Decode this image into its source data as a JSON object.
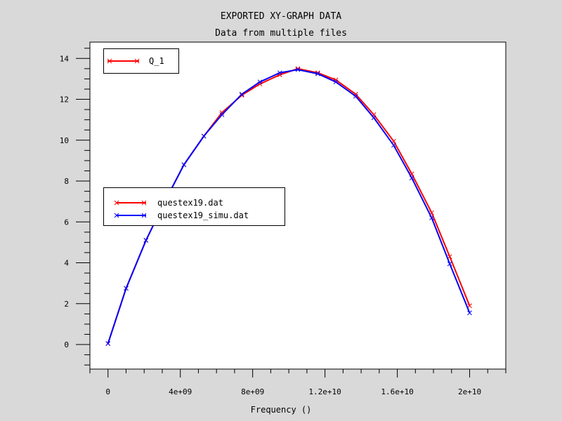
{
  "chart_data": {
    "type": "line",
    "title": "EXPORTED XY-GRAPH DATA",
    "subtitle": "Data from multiple files",
    "xlabel": "Frequency ()",
    "ylabel": "",
    "xlim": [
      -1000000000.0,
      22000000000.0
    ],
    "ylim": [
      -1.2,
      14.8
    ],
    "xticks": [
      0,
      4000000000.0,
      8000000000.0,
      12000000000.0,
      16000000000.0,
      20000000000.0
    ],
    "xtick_labels": [
      "0",
      "4e+09",
      "8e+09",
      "1.2e+10",
      "1.6e+10",
      "2e+10"
    ],
    "yticks": [
      0,
      2,
      4,
      6,
      8,
      10,
      12,
      14
    ],
    "ytick_labels": [
      "0",
      "2",
      "4",
      "6",
      "8",
      "10",
      "12",
      "14"
    ],
    "grid": false,
    "series": [
      {
        "name": "questex19.dat",
        "color": "#ff0000",
        "x": [
          0,
          1000000000.0,
          2100000000.0,
          3200000000.0,
          4200000000.0,
          5300000000.0,
          6300000000.0,
          7400000000.0,
          8400000000.0,
          9500000000.0,
          10500000000.0,
          11600000000.0,
          12600000000.0,
          13700000000.0,
          14700000000.0,
          15800000000.0,
          16800000000.0,
          17900000000.0,
          18900000000.0,
          20000000000.0
        ],
        "values": [
          0.05,
          2.75,
          5.1,
          7.1,
          8.8,
          10.2,
          11.35,
          12.2,
          12.75,
          13.2,
          13.5,
          13.3,
          12.95,
          12.25,
          11.25,
          9.95,
          8.35,
          6.45,
          4.3,
          1.9
        ]
      },
      {
        "name": "questex19_simu.dat",
        "color": "#0000ff",
        "x": [
          0,
          1000000000.0,
          2100000000.0,
          3200000000.0,
          4200000000.0,
          5300000000.0,
          6300000000.0,
          7400000000.0,
          8400000000.0,
          9500000000.0,
          10500000000.0,
          11600000000.0,
          12600000000.0,
          13700000000.0,
          14700000000.0,
          15800000000.0,
          16800000000.0,
          17900000000.0,
          18900000000.0,
          20000000000.0
        ],
        "values": [
          0.05,
          2.75,
          5.1,
          7.1,
          8.8,
          10.2,
          11.25,
          12.25,
          12.85,
          13.3,
          13.45,
          13.25,
          12.85,
          12.15,
          11.1,
          9.75,
          8.15,
          6.2,
          3.95,
          1.55
        ]
      }
    ],
    "legends": [
      {
        "entries": [
          {
            "label": "Q_1",
            "color": "#ff0000"
          }
        ]
      },
      {
        "entries": [
          {
            "label": "questex19.dat",
            "color": "#ff0000"
          },
          {
            "label": "questex19_simu.dat",
            "color": "#0000ff"
          }
        ]
      }
    ]
  }
}
